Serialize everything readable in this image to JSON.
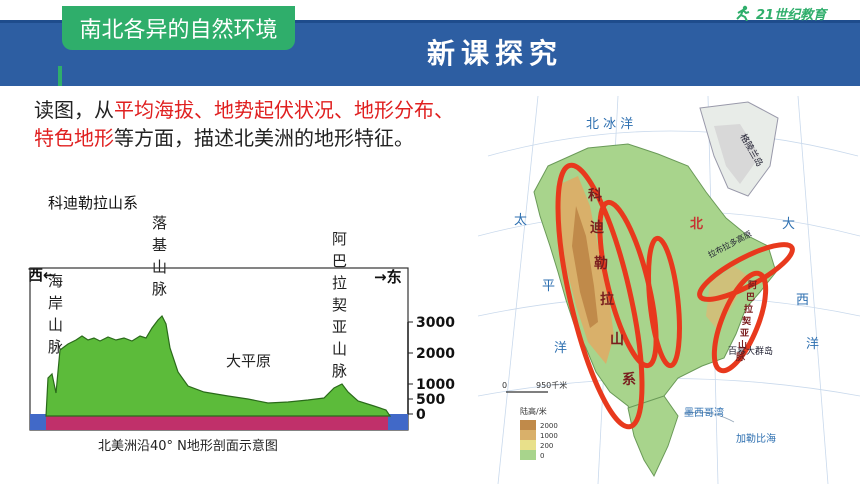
{
  "header": {
    "tab_title": "南北各异的自然环境",
    "section_title": "新课探究",
    "logo_text": "21世纪教育",
    "colors": {
      "blue": "#2d5ea2",
      "green": "#2fae6b"
    }
  },
  "instruction": {
    "p1": "读图，从",
    "highlight": "平均海拔、地势起伏状况、地形分布、特色地形",
    "p2": "等方面，描述北美洲的地形特征。"
  },
  "profile": {
    "cordillera_label": "科迪勒拉山系",
    "west_label": "西←",
    "east_label": "→东",
    "coast_range": "海岸山脉",
    "rocky": "落基山脉",
    "appalachian": "阿巴拉契亚山脉",
    "plain": "大平原",
    "y_ticks": [
      "3000",
      "2000",
      "1000",
      "500",
      "0"
    ],
    "caption": "北美洲沿40° N地形剖面示意图"
  },
  "map": {
    "labels": {
      "arctic": "北  冰  洋",
      "pacific": "太  平  洋",
      "atlantic": "大  西  洋",
      "cordillera_vertical": "科迪勒拉山系",
      "appalachian_vertical": "阿巴拉契亚山脉",
      "greenland": "格陵兰岛",
      "labrador": "拉布拉多高原",
      "bermuda": "百慕大群岛",
      "gulf": "墨西哥湾",
      "caribbean": "加勒比海",
      "north": "北"
    },
    "scale": {
      "zero": "0",
      "value": "950千米"
    },
    "legend": {
      "title": "陆高/米",
      "items": [
        "2000",
        "1000",
        "200",
        "0"
      ]
    }
  }
}
